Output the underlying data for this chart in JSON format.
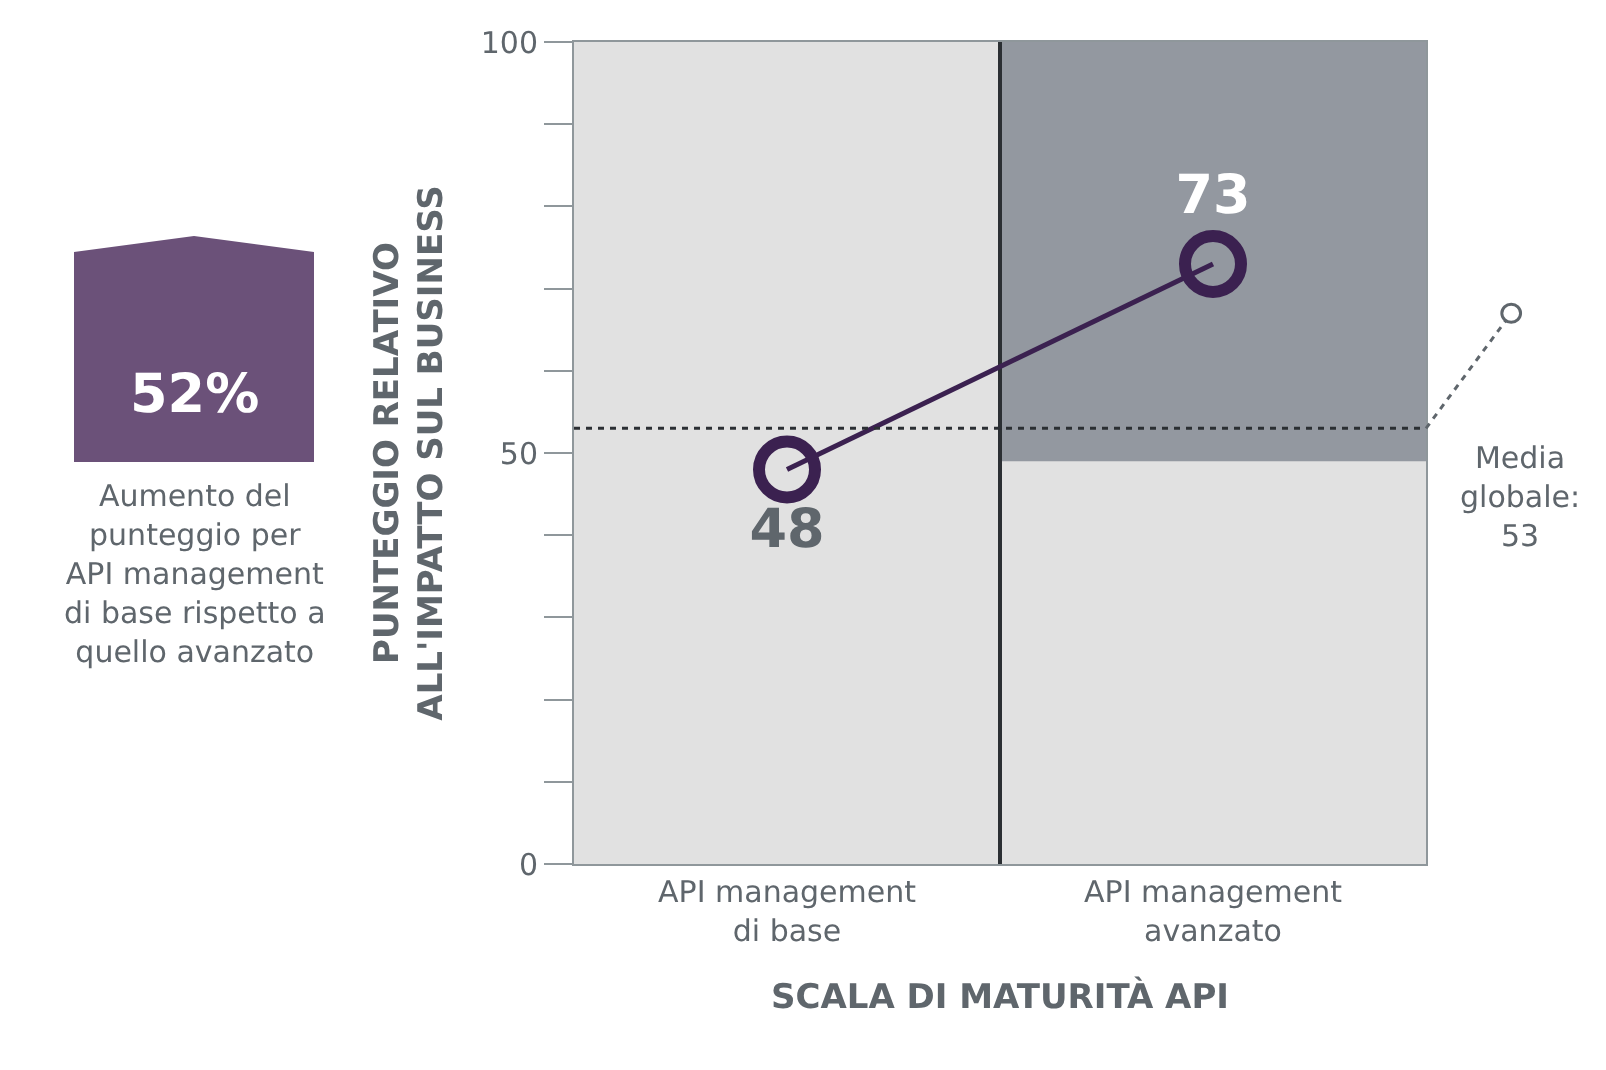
{
  "chart_data": {
    "type": "line",
    "xlabel": "SCALA DI MATURITÀ API",
    "ylabel": "PUNTEGGIO RELATIVO\nALL'IMPATTO SUL BUSINESS",
    "categories": [
      "API management\ndi base",
      "API management\navanzato"
    ],
    "series": [
      {
        "color": "#3b2150",
        "values": [
          48,
          73
        ]
      }
    ],
    "data_labels": true,
    "marker": "circle",
    "line_style": "solid",
    "ylim": [
      0,
      100
    ],
    "yticks": [
      0,
      {
        "value": 10,
        "label": null
      },
      {
        "value": 20,
        "label": null
      },
      {
        "value": 30,
        "label": null
      },
      {
        "value": 40,
        "label": null
      },
      50,
      {
        "value": 60,
        "label": null
      },
      {
        "value": 70,
        "label": null
      },
      {
        "value": 80,
        "label": null
      },
      {
        "value": 90,
        "label": null
      },
      100
    ],
    "grid": "x",
    "ref_lines": [
      {
        "axis": "y",
        "value": 53,
        "label": "Media\nglobale:\n53",
        "color": "#2b2f33",
        "line_style": "dotted"
      }
    ],
    "bands": [
      {
        "axis": "y",
        "from": 49,
        "to": 100,
        "color": "#9398a0"
      }
    ],
    "annotations": [
      "52%",
      "Aumento del\npunteggio per\nAPI management\ndi base rispetto a\nquello avanzato"
    ]
  }
}
